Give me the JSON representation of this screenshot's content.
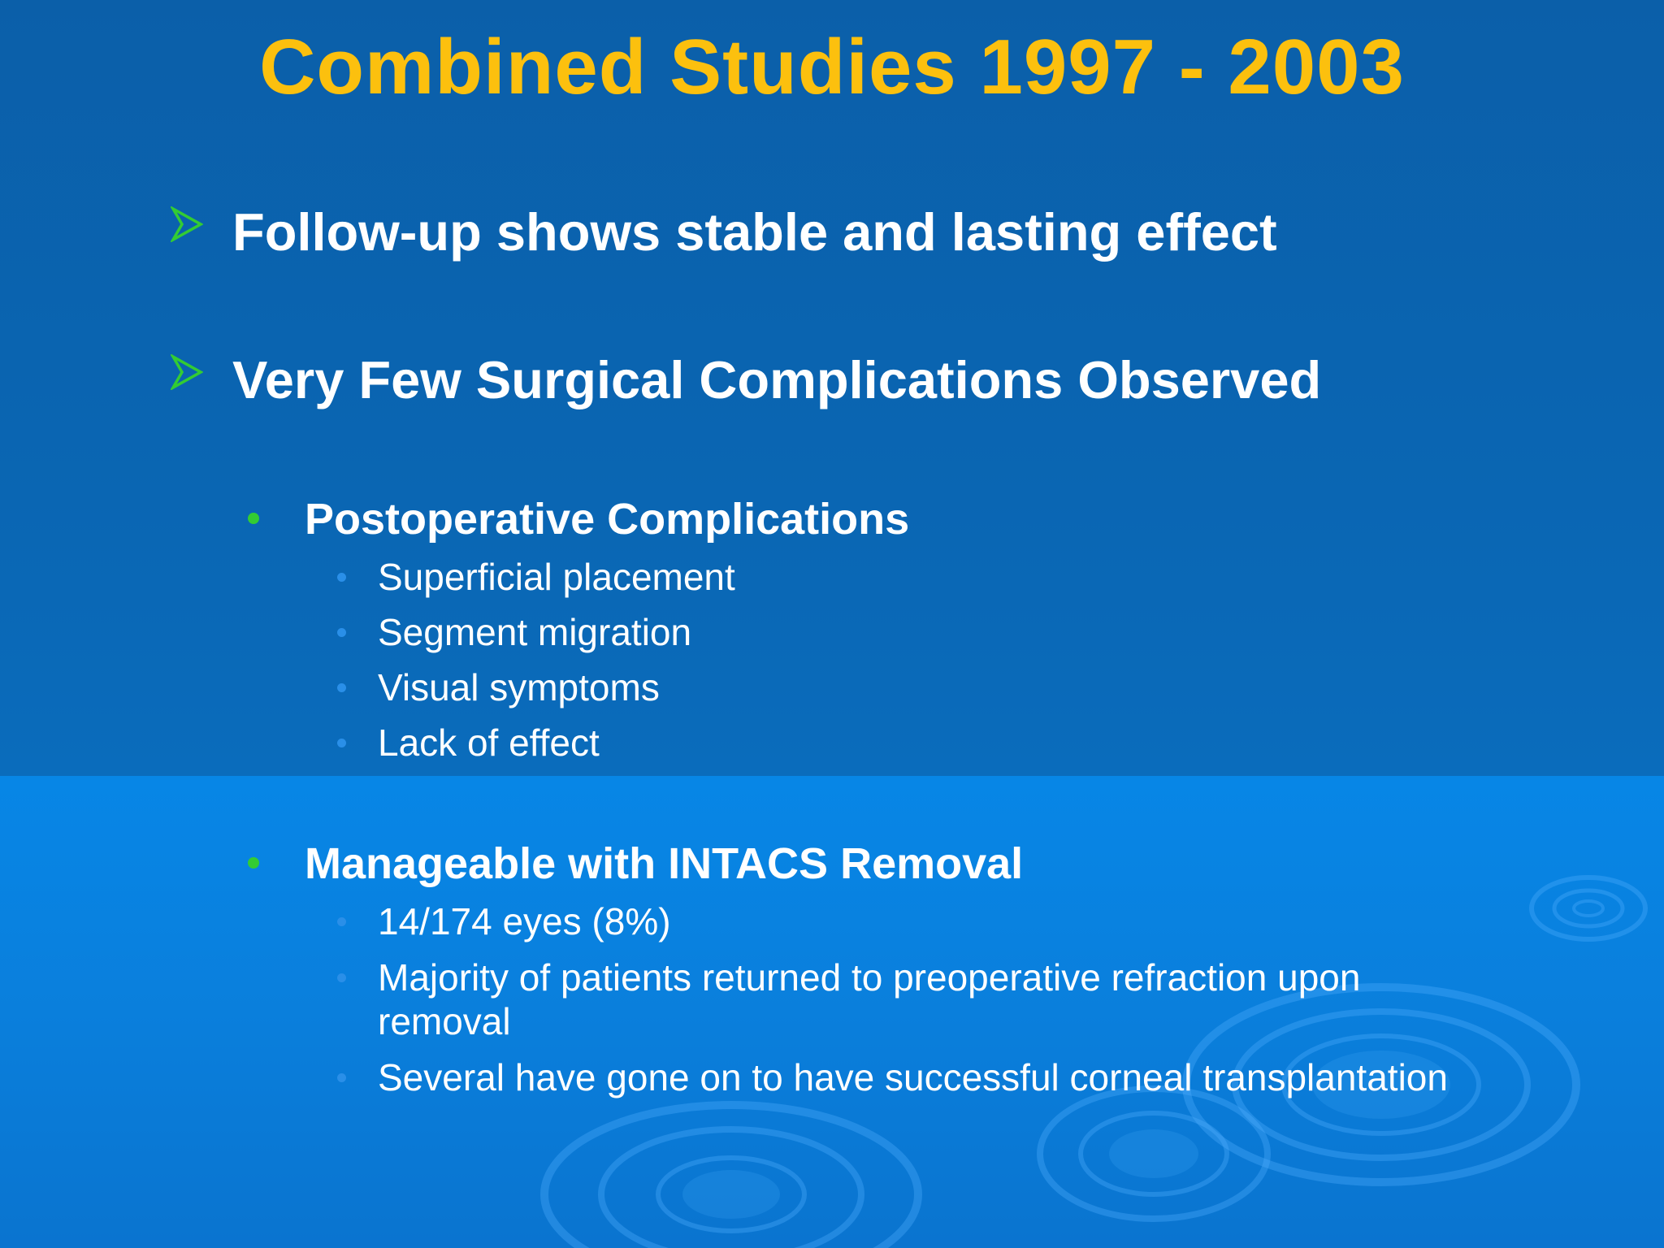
{
  "slide": {
    "title": "Combined Studies 1997 - 2003",
    "colors": {
      "background_top": "#0b5fa9",
      "background_bottom": "#0786e6",
      "title": "#fcc00e",
      "text": "#ffffff",
      "arrow_bullet": "#33cc33",
      "dot_bullet_level2": "#33cc33",
      "dot_bullet_level3": "#2a8fe8"
    },
    "bullets": [
      {
        "icon": "arrow-bullet-icon",
        "text": "Follow-up shows stable and lasting effect"
      },
      {
        "icon": "arrow-bullet-icon",
        "text": "Very Few Surgical Complications Observed"
      }
    ],
    "sections": [
      {
        "heading": "Postoperative Complications",
        "items": [
          "Superficial placement",
          "Segment migration",
          "Visual symptoms",
          "Lack of effect"
        ]
      },
      {
        "heading": "Manageable with INTACS Removal",
        "items": [
          "14/174 eyes (8%)",
          "Majority of patients returned to preoperative refraction upon removal",
          "Several have gone on to have successful corneal transplantation"
        ]
      }
    ]
  }
}
